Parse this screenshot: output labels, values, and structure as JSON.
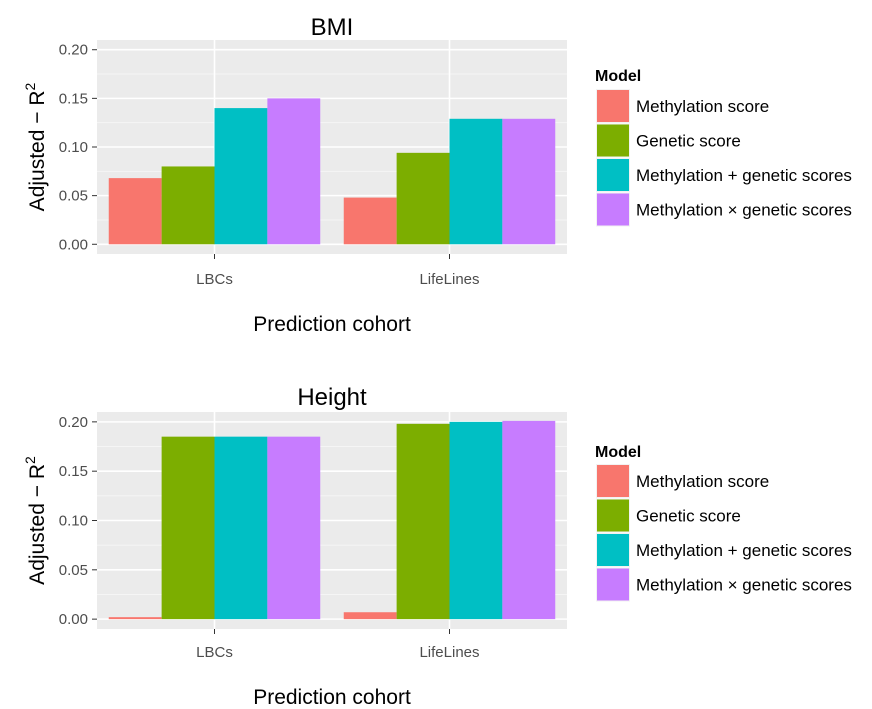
{
  "chart_data": [
    {
      "type": "bar",
      "title": "BMI",
      "xlabel": "Prediction cohort",
      "ylabel": "Adjusted − R",
      "ylabel_superscript": "2",
      "categories": [
        "LBCs",
        "LifeLines"
      ],
      "ylim": [
        -0.01,
        0.21
      ],
      "yticks": [
        0.0,
        0.05,
        0.1,
        0.15,
        0.2
      ],
      "ytick_labels": [
        "0.00",
        "0.05",
        "0.10",
        "0.15",
        "0.20"
      ],
      "grid": true,
      "legend": {
        "title": "Model",
        "placement": "right",
        "labels": [
          "Methylation score",
          "Genetic score",
          "Methylation + genetic scores",
          "Methylation × genetic scores"
        ]
      },
      "series": [
        {
          "name": "Methylation score",
          "color": "#F8766D",
          "values": [
            0.068,
            0.048
          ]
        },
        {
          "name": "Genetic score",
          "color": "#7CAE00",
          "values": [
            0.08,
            0.094
          ]
        },
        {
          "name": "Methylation + genetic scores",
          "color": "#00BFC4",
          "values": [
            0.14,
            0.129
          ]
        },
        {
          "name": "Methylation × genetic scores",
          "color": "#C77CFF",
          "values": [
            0.15,
            0.129
          ]
        }
      ]
    },
    {
      "type": "bar",
      "title": "Height",
      "xlabel": "Prediction cohort",
      "ylabel": "Adjusted − R",
      "ylabel_superscript": "2",
      "categories": [
        "LBCs",
        "LifeLines"
      ],
      "ylim": [
        -0.01,
        0.21
      ],
      "yticks": [
        0.0,
        0.05,
        0.1,
        0.15,
        0.2
      ],
      "ytick_labels": [
        "0.00",
        "0.05",
        "0.10",
        "0.15",
        "0.20"
      ],
      "grid": true,
      "legend": {
        "title": "Model",
        "placement": "right",
        "labels": [
          "Methylation score",
          "Genetic score",
          "Methylation + genetic scores",
          "Methylation × genetic scores"
        ]
      },
      "series": [
        {
          "name": "Methylation score",
          "color": "#F8766D",
          "values": [
            0.002,
            0.007
          ]
        },
        {
          "name": "Genetic score",
          "color": "#7CAE00",
          "values": [
            0.185,
            0.198
          ]
        },
        {
          "name": "Methylation + genetic scores",
          "color": "#00BFC4",
          "values": [
            0.185,
            0.2
          ]
        },
        {
          "name": "Methylation × genetic scores",
          "color": "#C77CFF",
          "values": [
            0.185,
            0.201
          ]
        }
      ]
    }
  ]
}
